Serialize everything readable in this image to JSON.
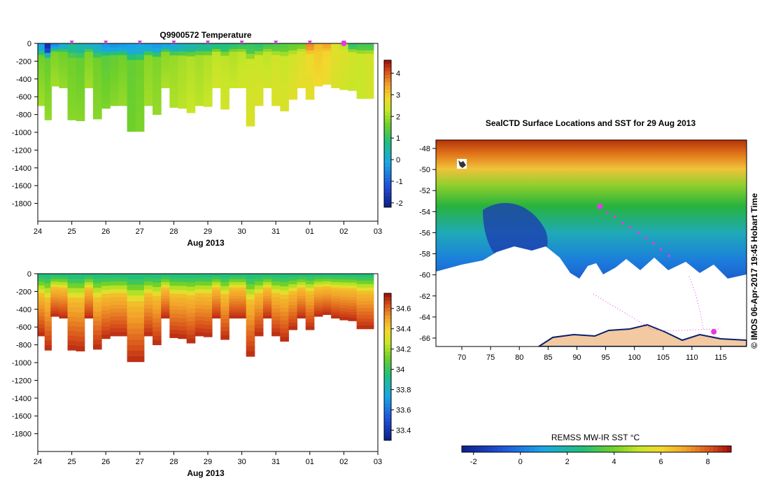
{
  "chart_data": [
    {
      "type": "heatmap",
      "title": "Q9900572  Temperature",
      "xlabel": "Aug 2013",
      "x_ticks": [
        "24",
        "25",
        "26",
        "27",
        "28",
        "29",
        "30",
        "31",
        "01",
        "02",
        "03"
      ],
      "x_range": [
        0,
        10
      ],
      "y_ticks": [
        "0",
        "-200",
        "-400",
        "-600",
        "-800",
        "-1000",
        "-1200",
        "-1400",
        "-1600",
        "-1800"
      ],
      "y_range": [
        -2000,
        0
      ],
      "colorbar_ticks": [
        "4",
        "3",
        "2",
        "1",
        "0",
        "-1",
        "-2"
      ],
      "colorbar_range": [
        -2.2,
        4.6
      ],
      "profile_markers_days": [
        1,
        2,
        3,
        4,
        5,
        6,
        7,
        8,
        9
      ],
      "current_marker_day": 9,
      "profiles": [
        {
          "day": 0.1,
          "w": 0.2,
          "depth": 700,
          "surf": -0.2,
          "mid": 1.6,
          "deep": 2.0
        },
        {
          "day": 0.3,
          "w": 0.2,
          "depth": 860,
          "surf": -1.8,
          "mid": 1.5,
          "deep": 1.9
        },
        {
          "day": 0.5,
          "w": 0.25,
          "depth": 480,
          "surf": -0.5,
          "mid": 1.7,
          "deep": 2.0
        },
        {
          "day": 0.75,
          "w": 0.25,
          "depth": 500,
          "surf": 0.0,
          "mid": 1.6,
          "deep": 1.9
        },
        {
          "day": 1.0,
          "w": 0.25,
          "depth": 860,
          "surf": 0.6,
          "mid": 1.6,
          "deep": 1.8
        },
        {
          "day": 1.25,
          "w": 0.25,
          "depth": 870,
          "surf": 0.4,
          "mid": 1.5,
          "deep": 1.8
        },
        {
          "day": 1.5,
          "w": 0.25,
          "depth": 500,
          "surf": 0.2,
          "mid": 1.7,
          "deep": 2.0
        },
        {
          "day": 1.75,
          "w": 0.25,
          "depth": 850,
          "surf": 0.1,
          "mid": 1.6,
          "deep": 1.8
        },
        {
          "day": 2.0,
          "w": 0.25,
          "depth": 730,
          "surf": -0.3,
          "mid": 1.4,
          "deep": 1.7
        },
        {
          "day": 2.25,
          "w": 0.25,
          "depth": 700,
          "surf": -0.4,
          "mid": 1.5,
          "deep": 1.8
        },
        {
          "day": 2.5,
          "w": 0.25,
          "depth": 700,
          "surf": -0.3,
          "mid": 1.6,
          "deep": 1.9
        },
        {
          "day": 2.75,
          "w": 0.25,
          "depth": 990,
          "surf": -0.2,
          "mid": 1.5,
          "deep": 1.6
        },
        {
          "day": 3.0,
          "w": 0.25,
          "depth": 990,
          "surf": -0.1,
          "mid": 1.6,
          "deep": 1.7
        },
        {
          "day": 3.25,
          "w": 0.25,
          "depth": 700,
          "surf": -0.2,
          "mid": 1.8,
          "deep": 2.0
        },
        {
          "day": 3.5,
          "w": 0.25,
          "depth": 800,
          "surf": -0.3,
          "mid": 1.7,
          "deep": 1.9
        },
        {
          "day": 3.75,
          "w": 0.25,
          "depth": 500,
          "surf": -0.2,
          "mid": 1.8,
          "deep": 2.1
        },
        {
          "day": 4.0,
          "w": 0.25,
          "depth": 720,
          "surf": 0.0,
          "mid": 1.9,
          "deep": 2.1
        },
        {
          "day": 4.25,
          "w": 0.25,
          "depth": 730,
          "surf": 0.2,
          "mid": 2.0,
          "deep": 2.2
        },
        {
          "day": 4.5,
          "w": 0.25,
          "depth": 780,
          "surf": 0.4,
          "mid": 2.1,
          "deep": 2.3
        },
        {
          "day": 4.75,
          "w": 0.25,
          "depth": 700,
          "surf": 0.5,
          "mid": 2.0,
          "deep": 2.2
        },
        {
          "day": 5.0,
          "w": 0.25,
          "depth": 710,
          "surf": 0.6,
          "mid": 2.1,
          "deep": 2.3
        },
        {
          "day": 5.25,
          "w": 0.25,
          "depth": 500,
          "surf": 0.7,
          "mid": 2.2,
          "deep": 2.4
        },
        {
          "day": 5.5,
          "w": 0.25,
          "depth": 740,
          "surf": 0.8,
          "mid": 2.2,
          "deep": 2.4
        },
        {
          "day": 5.75,
          "w": 0.25,
          "depth": 500,
          "surf": 0.9,
          "mid": 2.1,
          "deep": 2.3
        },
        {
          "day": 6.0,
          "w": 0.25,
          "depth": 500,
          "surf": 1.0,
          "mid": 2.2,
          "deep": 2.4
        },
        {
          "day": 6.25,
          "w": 0.25,
          "depth": 930,
          "surf": 1.1,
          "mid": 2.3,
          "deep": 2.5
        },
        {
          "day": 6.5,
          "w": 0.25,
          "depth": 700,
          "surf": 1.0,
          "mid": 2.3,
          "deep": 2.5
        },
        {
          "day": 6.75,
          "w": 0.25,
          "depth": 500,
          "surf": 1.2,
          "mid": 2.2,
          "deep": 2.4
        },
        {
          "day": 7.0,
          "w": 0.25,
          "depth": 700,
          "surf": 1.3,
          "mid": 2.4,
          "deep": 2.5
        },
        {
          "day": 7.25,
          "w": 0.25,
          "depth": 760,
          "surf": 1.4,
          "mid": 2.3,
          "deep": 2.5
        },
        {
          "day": 7.5,
          "w": 0.25,
          "depth": 630,
          "surf": 1.5,
          "mid": 2.4,
          "deep": 2.6
        },
        {
          "day": 7.75,
          "w": 0.25,
          "depth": 500,
          "surf": 1.6,
          "mid": 2.5,
          "deep": 2.7
        },
        {
          "day": 8.0,
          "w": 0.25,
          "depth": 630,
          "surf": 3.6,
          "mid": 2.8,
          "deep": 2.6
        },
        {
          "day": 8.25,
          "w": 0.25,
          "depth": 480,
          "surf": 3.2,
          "mid": 3.0,
          "deep": 2.8
        },
        {
          "day": 8.5,
          "w": 0.25,
          "depth": 460,
          "surf": 3.4,
          "mid": 2.9,
          "deep": 2.7
        },
        {
          "day": 8.75,
          "w": 0.25,
          "depth": 500,
          "surf": 2.6,
          "mid": 2.6,
          "deep": 2.5
        },
        {
          "day": 9.0,
          "w": 0.25,
          "depth": 520,
          "surf": 2.2,
          "mid": 2.5,
          "deep": 2.4
        },
        {
          "day": 9.25,
          "w": 0.25,
          "depth": 530,
          "surf": 1.0,
          "mid": 2.4,
          "deep": 2.3
        },
        {
          "day": 9.5,
          "w": 0.25,
          "depth": 620,
          "surf": 1.2,
          "mid": 2.3,
          "deep": 2.3
        },
        {
          "day": 9.75,
          "w": 0.25,
          "depth": 620,
          "surf": 1.2,
          "mid": 2.4,
          "deep": 2.4
        }
      ]
    },
    {
      "type": "heatmap",
      "title": "",
      "xlabel": "Aug 2013",
      "x_ticks": [
        "24",
        "25",
        "26",
        "27",
        "28",
        "29",
        "30",
        "31",
        "01",
        "02",
        "03"
      ],
      "x_range": [
        0,
        10
      ],
      "y_ticks": [
        "0",
        "-200",
        "-400",
        "-600",
        "-800",
        "-1000",
        "-1200",
        "-1400",
        "-1600",
        "-1800"
      ],
      "y_range": [
        -2000,
        0
      ],
      "colorbar_ticks": [
        "34.6",
        "34.4",
        "34.2",
        "34",
        "33.8",
        "33.6",
        "33.4"
      ],
      "colorbar_range": [
        33.3,
        34.75
      ],
      "profiles_shared_with": "temperature",
      "salinity_profile": {
        "surf": 33.95,
        "mid": 34.45,
        "deep": 34.7
      }
    },
    {
      "type": "heatmap",
      "title": "SealCTD Surface Locations and SST for 29 Aug 2013",
      "x_ticks": [
        "70",
        "75",
        "80",
        "85",
        "90",
        "95",
        "100",
        "105",
        "110",
        "115"
      ],
      "x_range": [
        65.5,
        119.5
      ],
      "y_ticks": [
        "-48",
        "-50",
        "-52",
        "-54",
        "-56",
        "-58",
        "-60",
        "-62",
        "-64",
        "-66"
      ],
      "y_range": [
        -66.8,
        -47.2
      ],
      "colorbar_label": "REMSS MW-IR SST °C",
      "colorbar_ticks": [
        "-2",
        "0",
        "2",
        "4",
        "6",
        "8"
      ],
      "colorbar_range": [
        -2.5,
        9
      ],
      "side_label": "© IMOS 06-Apr-2017 19:45 Hobart Time",
      "track": [
        [
          94.0,
          -53.5
        ],
        [
          95.3,
          -54.1
        ],
        [
          96.6,
          -54.5
        ],
        [
          98.0,
          -55.1
        ],
        [
          99.3,
          -55.5
        ],
        [
          100.7,
          -56.0
        ],
        [
          102.0,
          -56.5
        ],
        [
          103.3,
          -57.0
        ],
        [
          104.6,
          -57.6
        ],
        [
          106.0,
          -58.2
        ]
      ],
      "track_head": [
        94.0,
        -53.5
      ],
      "current_position": [
        113.8,
        -65.4
      ]
    }
  ]
}
